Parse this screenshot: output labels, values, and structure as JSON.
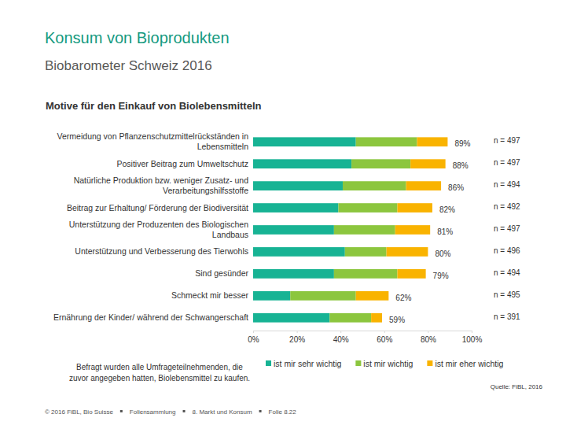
{
  "page": {
    "title": "Konsum von Bioprodukten",
    "subtitle": "Biobarometer Schweiz 2016",
    "footer": [
      "© 2016 FiBL, Bio Suisse",
      "Foliensammlung",
      "8. Markt und Konsum",
      "Folie 8.22"
    ]
  },
  "chart_data": {
    "type": "bar",
    "orientation": "horizontal",
    "stacked": true,
    "title": "Motive für den Einkauf von Biolebensmitteln",
    "categories": [
      "Vermeidung von Pflanzenschutzmittelrückständen in\nLebensmitteln",
      "Positiver Beitrag zum Umweltschutz",
      "Natürliche Produktion bzw. weniger Zusatz- und\nVerarbeitungshilfsstoffe",
      "Beitrag zur Erhaltung/ Förderung der Biodiversität",
      "Unterstützung der Produzenten des Biologischen\nLandbaus",
      "Unterstützung und Verbesserung des Tierwohls",
      "Sind gesünder",
      "Schmeckt mir besser",
      "Ernährung der Kinder/ während der Schwangerschaft"
    ],
    "series": [
      {
        "name": "ist mir sehr wichtig",
        "color": "#17b394",
        "values": [
          47,
          45,
          41,
          39,
          37,
          42,
          37,
          17,
          35
        ]
      },
      {
        "name": "ist mir wichtig",
        "color": "#8cc63e",
        "values": [
          28,
          27,
          29,
          27,
          28,
          19,
          29,
          30,
          19
        ]
      },
      {
        "name": "ist mir eher wichtig",
        "color": "#f9b300",
        "values": [
          14,
          16,
          16,
          16,
          16,
          19,
          13,
          15,
          5
        ]
      }
    ],
    "totals": {
      "values": [
        89,
        88,
        86,
        82,
        81,
        80,
        79,
        62,
        59
      ],
      "value_labels": [
        "89%",
        "88%",
        "86%",
        "82%",
        "81%",
        "80%",
        "79%",
        "62%",
        "59%"
      ]
    },
    "sample_size_labels": [
      "n = 497",
      "n = 497",
      "n = 494",
      "n = 492",
      "n = 497",
      "n = 496",
      "n = 494",
      "n = 495",
      "n = 391"
    ],
    "xlim": [
      0,
      100
    ],
    "xticks": [
      {
        "value": 0,
        "label": "0%"
      },
      {
        "value": 20,
        "label": "20%"
      },
      {
        "value": 40,
        "label": "40%"
      },
      {
        "value": 60,
        "label": "60%"
      },
      {
        "value": 80,
        "label": "80%"
      },
      {
        "value": 100,
        "label": "100%"
      }
    ],
    "grid": false,
    "legend": "bottom",
    "note": "Befragt wurden alle Umfrageteilnehmenden, die\nzuvor angegeben hatten, Biolebensmittel zu kaufen.",
    "source": "Quelle: FiBL, 2016"
  }
}
